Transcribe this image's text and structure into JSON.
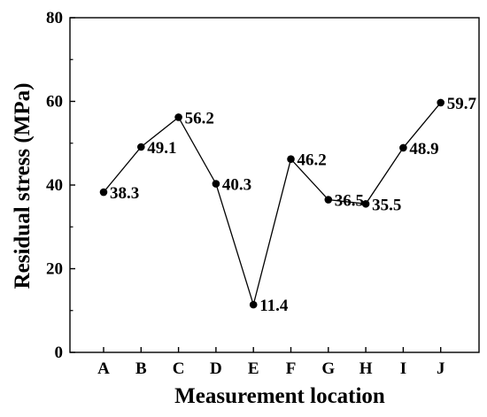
{
  "chart_data": {
    "type": "line",
    "title": "",
    "xlabel": "Measurement location",
    "ylabel": "Residual stress (MPa)",
    "categories": [
      "A",
      "B",
      "C",
      "D",
      "E",
      "F",
      "G",
      "H",
      "I",
      "J"
    ],
    "values": [
      38.3,
      49.1,
      56.2,
      40.3,
      11.4,
      46.2,
      36.5,
      35.5,
      48.9,
      59.7
    ],
    "data_labels": [
      "38.3",
      "49.1",
      "56.2",
      "40.3",
      "11.4",
      "46.2",
      "36.5",
      "35.5",
      "48.9",
      "59.7"
    ],
    "ylim": [
      0,
      80
    ],
    "yticks": [
      0,
      20,
      40,
      60,
      80
    ],
    "grid": false,
    "legend": "none",
    "marker": "filled-circle",
    "line_color": "#000000"
  }
}
